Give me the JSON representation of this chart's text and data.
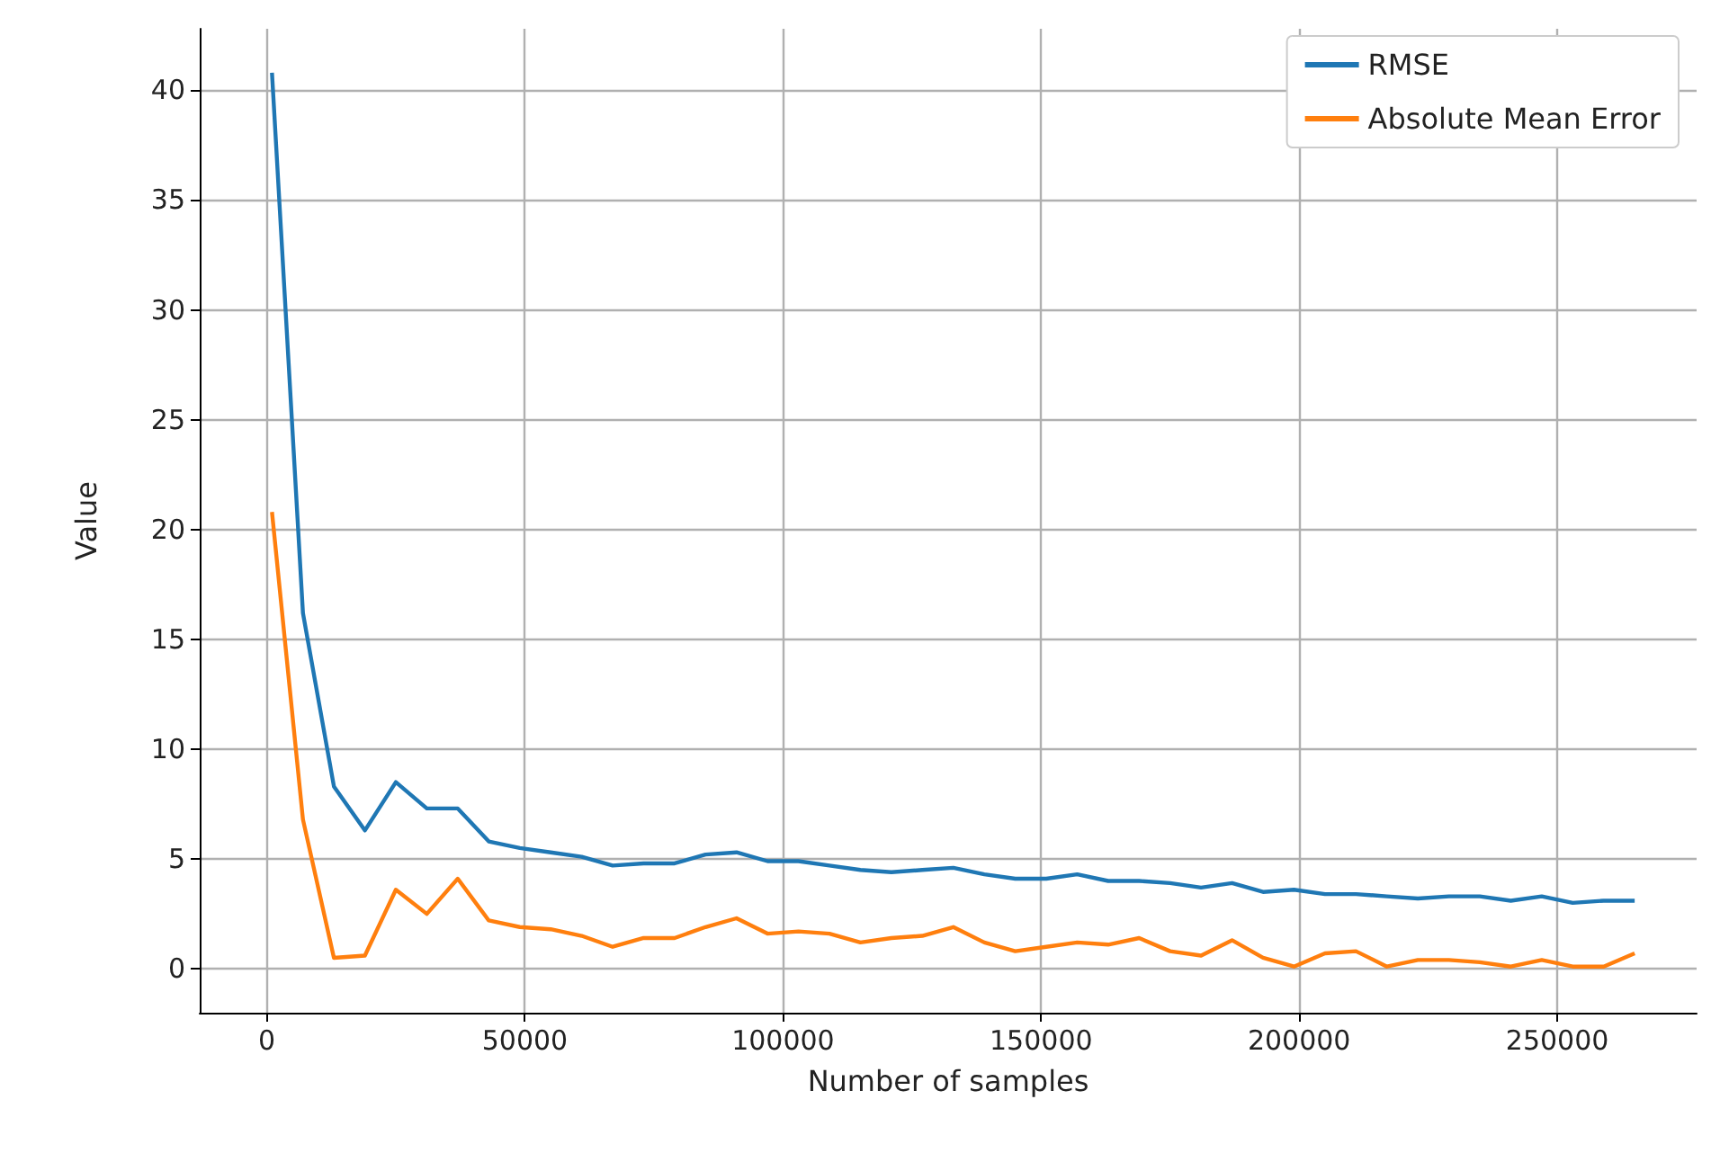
{
  "chart_data": {
    "type": "line",
    "xlabel": "Number of samples",
    "ylabel": "Value",
    "x": [
      1000,
      7000,
      13000,
      19000,
      25000,
      31000,
      37000,
      43000,
      49000,
      55000,
      61000,
      67000,
      73000,
      79000,
      85000,
      91000,
      97000,
      103000,
      109000,
      115000,
      121000,
      127000,
      133000,
      139000,
      145000,
      151000,
      157000,
      163000,
      169000,
      175000,
      181000,
      187000,
      193000,
      199000,
      205000,
      211000,
      217000,
      223000,
      229000,
      235000,
      241000,
      247000,
      253000,
      259000,
      265000
    ],
    "series": [
      {
        "name": "RMSE",
        "color": "#1f77b4",
        "values": [
          40.8,
          16.2,
          8.3,
          6.3,
          8.5,
          7.3,
          7.3,
          5.8,
          5.5,
          5.3,
          5.1,
          4.7,
          4.8,
          4.8,
          5.2,
          5.3,
          4.9,
          4.9,
          4.7,
          4.5,
          4.4,
          4.5,
          4.6,
          4.3,
          4.1,
          4.1,
          4.3,
          4.0,
          4.0,
          3.9,
          3.7,
          3.9,
          3.5,
          3.6,
          3.4,
          3.4,
          3.3,
          3.2,
          3.3,
          3.3,
          3.1,
          3.3,
          3.0,
          3.1,
          3.1
        ]
      },
      {
        "name": "Absolute Mean Error",
        "color": "#ff7f0e",
        "values": [
          20.8,
          6.8,
          0.5,
          0.6,
          3.6,
          2.5,
          4.1,
          2.2,
          1.9,
          1.8,
          1.5,
          1.0,
          1.4,
          1.4,
          1.9,
          2.3,
          1.6,
          1.7,
          1.6,
          1.2,
          1.4,
          1.5,
          1.9,
          1.2,
          0.8,
          1.0,
          1.2,
          1.1,
          1.4,
          0.8,
          0.6,
          1.3,
          0.5,
          0.1,
          0.7,
          0.8,
          0.1,
          0.4,
          0.4,
          0.3,
          0.1,
          0.4,
          0.1,
          0.1,
          0.7
        ]
      }
    ],
    "xlim": [
      -13000,
      277000
    ],
    "xticks": [
      0,
      50000,
      100000,
      150000,
      200000,
      250000
    ],
    "ylim": [
      -2,
      42.8
    ],
    "yticks": [
      0,
      5,
      10,
      15,
      20,
      25,
      30,
      35,
      40
    ],
    "grid": true,
    "legend": "top right",
    "marker": "none",
    "line_style": "solid"
  }
}
